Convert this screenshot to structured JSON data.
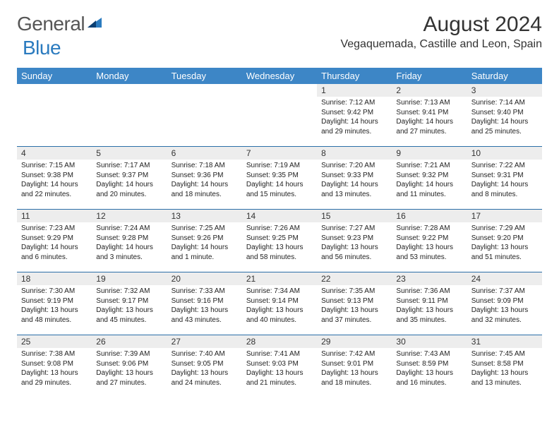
{
  "brand": {
    "part1": "General",
    "part2": "Blue"
  },
  "title": "August 2024",
  "location": "Vegaquemada, Castille and Leon, Spain",
  "colors": {
    "header_bg": "#3d86c6",
    "header_text": "#ffffff",
    "daynum_bg": "#ededed",
    "border": "#2b6fa8",
    "text": "#222222",
    "brand_grey": "#565656",
    "brand_blue": "#2b7bbf"
  },
  "day_headers": [
    "Sunday",
    "Monday",
    "Tuesday",
    "Wednesday",
    "Thursday",
    "Friday",
    "Saturday"
  ],
  "weeks": [
    [
      {
        "day": "",
        "sunrise": "",
        "sunset": "",
        "daylight1": "",
        "daylight2": ""
      },
      {
        "day": "",
        "sunrise": "",
        "sunset": "",
        "daylight1": "",
        "daylight2": ""
      },
      {
        "day": "",
        "sunrise": "",
        "sunset": "",
        "daylight1": "",
        "daylight2": ""
      },
      {
        "day": "",
        "sunrise": "",
        "sunset": "",
        "daylight1": "",
        "daylight2": ""
      },
      {
        "day": "1",
        "sunrise": "Sunrise: 7:12 AM",
        "sunset": "Sunset: 9:42 PM",
        "daylight1": "Daylight: 14 hours",
        "daylight2": "and 29 minutes."
      },
      {
        "day": "2",
        "sunrise": "Sunrise: 7:13 AM",
        "sunset": "Sunset: 9:41 PM",
        "daylight1": "Daylight: 14 hours",
        "daylight2": "and 27 minutes."
      },
      {
        "day": "3",
        "sunrise": "Sunrise: 7:14 AM",
        "sunset": "Sunset: 9:40 PM",
        "daylight1": "Daylight: 14 hours",
        "daylight2": "and 25 minutes."
      }
    ],
    [
      {
        "day": "4",
        "sunrise": "Sunrise: 7:15 AM",
        "sunset": "Sunset: 9:38 PM",
        "daylight1": "Daylight: 14 hours",
        "daylight2": "and 22 minutes."
      },
      {
        "day": "5",
        "sunrise": "Sunrise: 7:17 AM",
        "sunset": "Sunset: 9:37 PM",
        "daylight1": "Daylight: 14 hours",
        "daylight2": "and 20 minutes."
      },
      {
        "day": "6",
        "sunrise": "Sunrise: 7:18 AM",
        "sunset": "Sunset: 9:36 PM",
        "daylight1": "Daylight: 14 hours",
        "daylight2": "and 18 minutes."
      },
      {
        "day": "7",
        "sunrise": "Sunrise: 7:19 AM",
        "sunset": "Sunset: 9:35 PM",
        "daylight1": "Daylight: 14 hours",
        "daylight2": "and 15 minutes."
      },
      {
        "day": "8",
        "sunrise": "Sunrise: 7:20 AM",
        "sunset": "Sunset: 9:33 PM",
        "daylight1": "Daylight: 14 hours",
        "daylight2": "and 13 minutes."
      },
      {
        "day": "9",
        "sunrise": "Sunrise: 7:21 AM",
        "sunset": "Sunset: 9:32 PM",
        "daylight1": "Daylight: 14 hours",
        "daylight2": "and 11 minutes."
      },
      {
        "day": "10",
        "sunrise": "Sunrise: 7:22 AM",
        "sunset": "Sunset: 9:31 PM",
        "daylight1": "Daylight: 14 hours",
        "daylight2": "and 8 minutes."
      }
    ],
    [
      {
        "day": "11",
        "sunrise": "Sunrise: 7:23 AM",
        "sunset": "Sunset: 9:29 PM",
        "daylight1": "Daylight: 14 hours",
        "daylight2": "and 6 minutes."
      },
      {
        "day": "12",
        "sunrise": "Sunrise: 7:24 AM",
        "sunset": "Sunset: 9:28 PM",
        "daylight1": "Daylight: 14 hours",
        "daylight2": "and 3 minutes."
      },
      {
        "day": "13",
        "sunrise": "Sunrise: 7:25 AM",
        "sunset": "Sunset: 9:26 PM",
        "daylight1": "Daylight: 14 hours",
        "daylight2": "and 1 minute."
      },
      {
        "day": "14",
        "sunrise": "Sunrise: 7:26 AM",
        "sunset": "Sunset: 9:25 PM",
        "daylight1": "Daylight: 13 hours",
        "daylight2": "and 58 minutes."
      },
      {
        "day": "15",
        "sunrise": "Sunrise: 7:27 AM",
        "sunset": "Sunset: 9:23 PM",
        "daylight1": "Daylight: 13 hours",
        "daylight2": "and 56 minutes."
      },
      {
        "day": "16",
        "sunrise": "Sunrise: 7:28 AM",
        "sunset": "Sunset: 9:22 PM",
        "daylight1": "Daylight: 13 hours",
        "daylight2": "and 53 minutes."
      },
      {
        "day": "17",
        "sunrise": "Sunrise: 7:29 AM",
        "sunset": "Sunset: 9:20 PM",
        "daylight1": "Daylight: 13 hours",
        "daylight2": "and 51 minutes."
      }
    ],
    [
      {
        "day": "18",
        "sunrise": "Sunrise: 7:30 AM",
        "sunset": "Sunset: 9:19 PM",
        "daylight1": "Daylight: 13 hours",
        "daylight2": "and 48 minutes."
      },
      {
        "day": "19",
        "sunrise": "Sunrise: 7:32 AM",
        "sunset": "Sunset: 9:17 PM",
        "daylight1": "Daylight: 13 hours",
        "daylight2": "and 45 minutes."
      },
      {
        "day": "20",
        "sunrise": "Sunrise: 7:33 AM",
        "sunset": "Sunset: 9:16 PM",
        "daylight1": "Daylight: 13 hours",
        "daylight2": "and 43 minutes."
      },
      {
        "day": "21",
        "sunrise": "Sunrise: 7:34 AM",
        "sunset": "Sunset: 9:14 PM",
        "daylight1": "Daylight: 13 hours",
        "daylight2": "and 40 minutes."
      },
      {
        "day": "22",
        "sunrise": "Sunrise: 7:35 AM",
        "sunset": "Sunset: 9:13 PM",
        "daylight1": "Daylight: 13 hours",
        "daylight2": "and 37 minutes."
      },
      {
        "day": "23",
        "sunrise": "Sunrise: 7:36 AM",
        "sunset": "Sunset: 9:11 PM",
        "daylight1": "Daylight: 13 hours",
        "daylight2": "and 35 minutes."
      },
      {
        "day": "24",
        "sunrise": "Sunrise: 7:37 AM",
        "sunset": "Sunset: 9:09 PM",
        "daylight1": "Daylight: 13 hours",
        "daylight2": "and 32 minutes."
      }
    ],
    [
      {
        "day": "25",
        "sunrise": "Sunrise: 7:38 AM",
        "sunset": "Sunset: 9:08 PM",
        "daylight1": "Daylight: 13 hours",
        "daylight2": "and 29 minutes."
      },
      {
        "day": "26",
        "sunrise": "Sunrise: 7:39 AM",
        "sunset": "Sunset: 9:06 PM",
        "daylight1": "Daylight: 13 hours",
        "daylight2": "and 27 minutes."
      },
      {
        "day": "27",
        "sunrise": "Sunrise: 7:40 AM",
        "sunset": "Sunset: 9:05 PM",
        "daylight1": "Daylight: 13 hours",
        "daylight2": "and 24 minutes."
      },
      {
        "day": "28",
        "sunrise": "Sunrise: 7:41 AM",
        "sunset": "Sunset: 9:03 PM",
        "daylight1": "Daylight: 13 hours",
        "daylight2": "and 21 minutes."
      },
      {
        "day": "29",
        "sunrise": "Sunrise: 7:42 AM",
        "sunset": "Sunset: 9:01 PM",
        "daylight1": "Daylight: 13 hours",
        "daylight2": "and 18 minutes."
      },
      {
        "day": "30",
        "sunrise": "Sunrise: 7:43 AM",
        "sunset": "Sunset: 8:59 PM",
        "daylight1": "Daylight: 13 hours",
        "daylight2": "and 16 minutes."
      },
      {
        "day": "31",
        "sunrise": "Sunrise: 7:45 AM",
        "sunset": "Sunset: 8:58 PM",
        "daylight1": "Daylight: 13 hours",
        "daylight2": "and 13 minutes."
      }
    ]
  ]
}
